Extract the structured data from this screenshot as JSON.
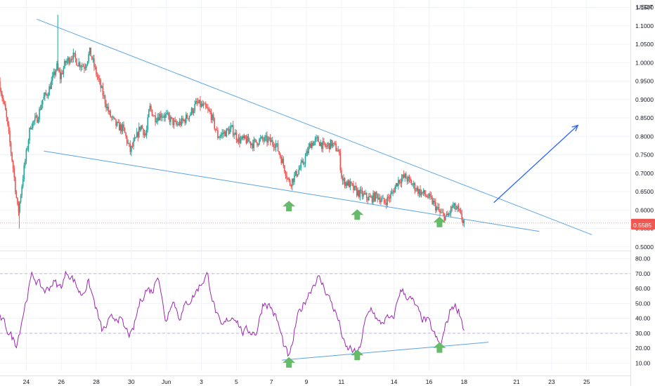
{
  "currency_label": "USDT",
  "colors": {
    "up": "#26a69a",
    "down": "#ef5350",
    "trendline": "#5ba4e0",
    "arrow": "#2962ff",
    "rsi": "#9c27b0",
    "marker": "#66bb6a",
    "grid": "#f0f3fa",
    "axis_text": "#131722"
  },
  "chart_data": [
    {
      "type": "candlestick",
      "title": "",
      "ylabel": "USDT",
      "ylim": [
        0.49,
        1.17
      ],
      "y_ticks": [
        "1.1500",
        "1.1000",
        "1.0500",
        "1.0000",
        "0.9500",
        "0.9000",
        "0.8500",
        "0.8000",
        "0.7500",
        "0.7000",
        "0.6500",
        "0.6000",
        "0.5500",
        "0.5000"
      ],
      "x_ticks": [
        "24",
        "26",
        "28",
        "30",
        "Jun",
        "3",
        "5",
        "7",
        "9",
        "11",
        "14",
        "16",
        "18",
        "21",
        "23",
        "25"
      ],
      "x_tick_days": [
        24,
        26,
        28,
        30,
        32,
        34,
        36,
        38,
        40,
        42,
        45,
        47,
        49,
        52,
        54,
        56
      ],
      "x_range_days": [
        22.5,
        58.5
      ],
      "ohlc_anchors": [
        [
          22.5,
          0.95
        ],
        [
          22.9,
          0.86
        ],
        [
          23.3,
          0.72
        ],
        [
          23.6,
          0.59
        ],
        [
          23.9,
          0.7
        ],
        [
          24.3,
          0.83
        ],
        [
          24.7,
          0.85
        ],
        [
          25.0,
          0.9
        ],
        [
          25.3,
          0.92
        ],
        [
          25.6,
          0.96
        ],
        [
          25.8,
          0.99
        ],
        [
          26.0,
          0.96
        ],
        [
          26.3,
          1.0
        ],
        [
          26.7,
          1.02
        ],
        [
          27.0,
          1.0
        ],
        [
          27.4,
          0.99
        ],
        [
          27.7,
          1.03
        ],
        [
          28.0,
          0.98
        ],
        [
          28.4,
          0.92
        ],
        [
          28.8,
          0.86
        ],
        [
          29.2,
          0.83
        ],
        [
          29.6,
          0.82
        ],
        [
          30.0,
          0.76
        ],
        [
          30.3,
          0.79
        ],
        [
          30.6,
          0.83
        ],
        [
          30.9,
          0.8
        ],
        [
          31.1,
          0.88
        ],
        [
          31.4,
          0.85
        ],
        [
          31.8,
          0.86
        ],
        [
          32.2,
          0.85
        ],
        [
          32.6,
          0.83
        ],
        [
          33.0,
          0.84
        ],
        [
          33.4,
          0.86
        ],
        [
          33.8,
          0.89
        ],
        [
          34.2,
          0.88
        ],
        [
          34.6,
          0.86
        ],
        [
          35.0,
          0.8
        ],
        [
          35.4,
          0.81
        ],
        [
          35.8,
          0.82
        ],
        [
          36.2,
          0.79
        ],
        [
          36.6,
          0.79
        ],
        [
          37.0,
          0.78
        ],
        [
          37.4,
          0.79
        ],
        [
          37.8,
          0.79
        ],
        [
          38.3,
          0.78
        ],
        [
          38.7,
          0.73
        ],
        [
          39.1,
          0.67
        ],
        [
          39.5,
          0.7
        ],
        [
          39.9,
          0.73
        ],
        [
          40.3,
          0.78
        ],
        [
          40.7,
          0.79
        ],
        [
          41.1,
          0.77
        ],
        [
          41.5,
          0.78
        ],
        [
          41.9,
          0.76
        ],
        [
          42.1,
          0.68
        ],
        [
          42.5,
          0.67
        ],
        [
          42.9,
          0.65
        ],
        [
          43.3,
          0.64
        ],
        [
          43.7,
          0.63
        ],
        [
          44.1,
          0.64
        ],
        [
          44.5,
          0.62
        ],
        [
          44.9,
          0.64
        ],
        [
          45.3,
          0.68
        ],
        [
          45.7,
          0.69
        ],
        [
          46.1,
          0.67
        ],
        [
          46.5,
          0.65
        ],
        [
          46.9,
          0.64
        ],
        [
          47.3,
          0.62
        ],
        [
          47.7,
          0.59
        ],
        [
          48.1,
          0.58
        ],
        [
          48.4,
          0.61
        ],
        [
          48.7,
          0.6
        ],
        [
          49.0,
          0.57
        ]
      ],
      "last_price": "0.5647",
      "prev_price": "0.5585",
      "annotations": [
        "descending upper trendline",
        "descending lower trendline",
        "upward breakout arrow",
        "3 green up-arrow markers at lower trendline touches"
      ]
    },
    {
      "type": "line",
      "title": "",
      "series_name": "",
      "ylim": [
        5,
        85
      ],
      "y_ticks": [
        "80.00",
        "70.00",
        "60.00",
        "50.00",
        "40.00",
        "30.00",
        "20.00",
        "10.00"
      ],
      "bands": [
        70,
        30
      ],
      "values_anchors": [
        [
          22.5,
          40
        ],
        [
          23.0,
          30
        ],
        [
          23.4,
          22
        ],
        [
          23.8,
          45
        ],
        [
          24.3,
          70
        ],
        [
          24.7,
          62
        ],
        [
          25.1,
          58
        ],
        [
          25.5,
          65
        ],
        [
          25.9,
          60
        ],
        [
          26.3,
          72
        ],
        [
          26.7,
          65
        ],
        [
          27.1,
          55
        ],
        [
          27.5,
          65
        ],
        [
          27.9,
          48
        ],
        [
          28.3,
          30
        ],
        [
          28.7,
          38
        ],
        [
          29.2,
          42
        ],
        [
          29.6,
          32
        ],
        [
          30.0,
          28
        ],
        [
          30.4,
          50
        ],
        [
          30.8,
          60
        ],
        [
          31.2,
          58
        ],
        [
          31.5,
          73
        ],
        [
          31.9,
          35
        ],
        [
          32.3,
          55
        ],
        [
          32.7,
          40
        ],
        [
          33.1,
          50
        ],
        [
          33.5,
          55
        ],
        [
          33.9,
          63
        ],
        [
          34.3,
          70
        ],
        [
          34.7,
          47
        ],
        [
          35.1,
          32
        ],
        [
          35.5,
          40
        ],
        [
          35.9,
          42
        ],
        [
          36.3,
          30
        ],
        [
          36.7,
          32
        ],
        [
          37.1,
          30
        ],
        [
          37.5,
          52
        ],
        [
          37.9,
          48
        ],
        [
          38.3,
          38
        ],
        [
          38.7,
          20
        ],
        [
          39.0,
          12
        ],
        [
          39.4,
          40
        ],
        [
          39.8,
          50
        ],
        [
          40.2,
          60
        ],
        [
          40.6,
          68
        ],
        [
          41.0,
          60
        ],
        [
          41.4,
          50
        ],
        [
          41.8,
          38
        ],
        [
          42.2,
          18
        ],
        [
          42.5,
          20
        ],
        [
          42.9,
          14
        ],
        [
          43.3,
          38
        ],
        [
          43.7,
          48
        ],
        [
          44.1,
          35
        ],
        [
          44.5,
          40
        ],
        [
          44.9,
          38
        ],
        [
          45.3,
          60
        ],
        [
          45.7,
          55
        ],
        [
          46.1,
          50
        ],
        [
          46.5,
          40
        ],
        [
          46.9,
          38
        ],
        [
          47.3,
          28
        ],
        [
          47.6,
          20
        ],
        [
          47.9,
          35
        ],
        [
          48.3,
          50
        ],
        [
          48.7,
          45
        ],
        [
          49.0,
          30
        ]
      ],
      "annotations": [
        "ascending support trendline",
        "3 green up-arrow markers"
      ]
    }
  ]
}
